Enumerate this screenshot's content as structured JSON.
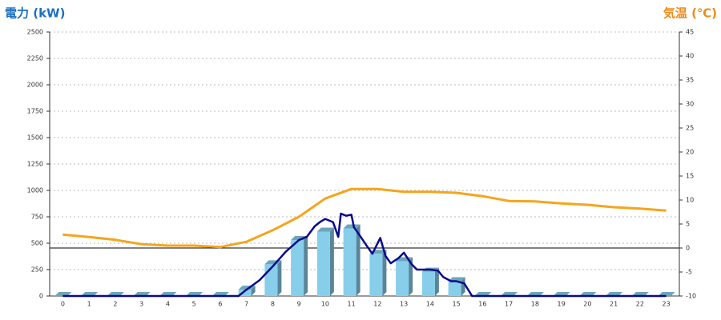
{
  "chart_data": {
    "type": "bar",
    "y_label": "電力 (kW)",
    "y2_label": "気温 (℃)",
    "y_label_color": "#1a6fc4",
    "y2_label_color": "#f08a1c",
    "categories": [
      "0",
      "1",
      "2",
      "3",
      "4",
      "5",
      "6",
      "7",
      "8",
      "9",
      "10",
      "11",
      "12",
      "13",
      "14",
      "15",
      "16",
      "17",
      "18",
      "19",
      "20",
      "21",
      "22",
      "23"
    ],
    "xlim": [
      -0.5,
      23.5
    ],
    "ylim": [
      0,
      2500
    ],
    "yticks": [
      0,
      250,
      500,
      750,
      1000,
      1250,
      1500,
      1750,
      2000,
      2250,
      2500
    ],
    "y2lim": [
      -10,
      45
    ],
    "y2ticks": [
      -10,
      -5,
      0,
      5,
      10,
      15,
      20,
      25,
      30,
      35,
      40,
      45
    ],
    "grid": true,
    "series": [
      {
        "type": "bar",
        "color": "#87ceeb",
        "values": [
          0,
          0,
          0,
          0,
          0,
          0,
          0,
          60,
          300,
          530,
          610,
          640,
          400,
          330,
          230,
          140,
          0,
          0,
          0,
          0,
          0,
          0,
          0,
          0
        ]
      },
      {
        "type": "line",
        "color": "#0a0a8c",
        "x": [
          0,
          6.7,
          7,
          7.5,
          8,
          8.5,
          9,
          9.3,
          9.6,
          9.8,
          10,
          10.3,
          10.5,
          10.6,
          10.8,
          11,
          11.1,
          11.3,
          11.6,
          11.8,
          12.1,
          12.3,
          12.5,
          12.8,
          13,
          13.3,
          13.5,
          14,
          14.3,
          14.5,
          14.8,
          15,
          15.3,
          15.6,
          23
        ],
        "values": [
          0,
          0,
          60,
          150,
          280,
          420,
          530,
          560,
          660,
          700,
          730,
          700,
          560,
          780,
          760,
          770,
          650,
          580,
          470,
          400,
          550,
          380,
          310,
          360,
          410,
          300,
          250,
          250,
          240,
          180,
          140,
          140,
          120,
          0,
          0
        ]
      },
      {
        "type": "line",
        "axis": "y2",
        "color": "#f5a51c",
        "values": [
          2.8,
          2.3,
          1.7,
          0.8,
          0.5,
          0.5,
          0.2,
          1.3,
          3.7,
          6.5,
          10.3,
          12.3,
          12.3,
          11.7,
          11.7,
          11.5,
          10.8,
          9.8,
          9.7,
          9.3,
          9,
          8.5,
          8.2,
          7.8
        ]
      }
    ]
  }
}
